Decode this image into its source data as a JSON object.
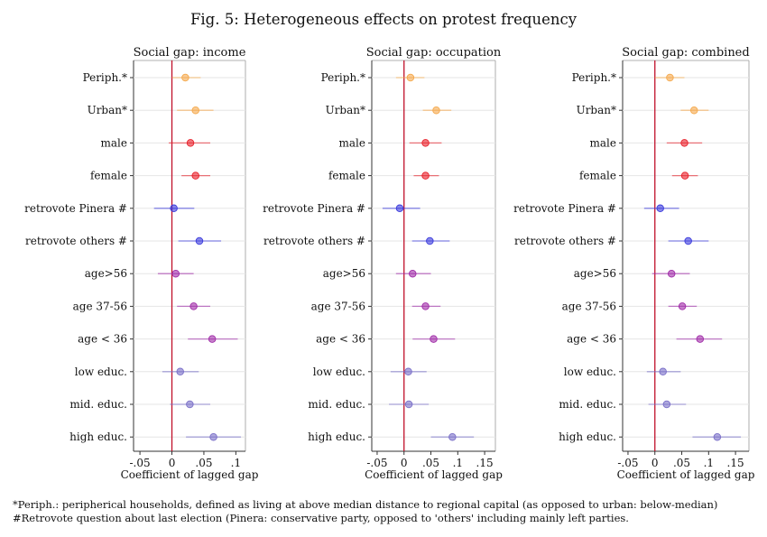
{
  "title": "Fig. 5: Heterogeneous effects on protest frequency",
  "notes": [
    "*Periph.: peripherical households, defined as living at above median distance to regional capital (as opposed to urban: below-median)",
    "#Retrovote question about last election (Pinera: conservative party, opposed to 'others' including mainly left parties."
  ],
  "colors": {
    "orange": "#f5a94c",
    "red": "#e8202a",
    "blue": "#3b3bdc",
    "purple": "#a02ca8",
    "lavender": "#7a6fc8",
    "zero_line": "#c0102a",
    "grid": "#e6e6e6",
    "axis": "#333333"
  },
  "chart_data": [
    {
      "type": "scatter",
      "title": "Social gap: income",
      "xlabel": "Coefficient of lagged gap",
      "xlim": [
        -0.06,
        0.115
      ],
      "xticks": [
        -0.05,
        0,
        0.05,
        0.1
      ],
      "xtick_labels": [
        "-.05",
        "0",
        ".05",
        ".1"
      ],
      "reference_line_x": 0,
      "grid": true,
      "categories": [
        "Periph.*",
        "Urban*",
        "male",
        "female",
        "retrovote Pinera #",
        "retrovote others #",
        "age>56",
        "age 37-56",
        "age < 36",
        "low educ.",
        "mid. educ.",
        "high educ."
      ],
      "colors": [
        "orange",
        "orange",
        "red",
        "red",
        "blue",
        "blue",
        "purple",
        "purple",
        "purple",
        "lavender",
        "lavender",
        "lavender"
      ],
      "estimates": [
        0.021,
        0.037,
        0.029,
        0.037,
        0.003,
        0.043,
        0.006,
        0.034,
        0.063,
        0.013,
        0.028,
        0.065
      ],
      "ci_low": [
        0.0,
        0.008,
        -0.005,
        0.015,
        -0.028,
        0.01,
        -0.022,
        0.008,
        0.025,
        -0.015,
        -0.003,
        0.022
      ],
      "ci_high": [
        0.045,
        0.065,
        0.06,
        0.06,
        0.035,
        0.077,
        0.034,
        0.06,
        0.103,
        0.042,
        0.06,
        0.108
      ]
    },
    {
      "type": "scatter",
      "title": "Social gap: occupation",
      "xlabel": "Coefficient of lagged gap",
      "xlim": [
        -0.06,
        0.17
      ],
      "xticks": [
        -0.05,
        0,
        0.05,
        0.1,
        0.15
      ],
      "xtick_labels": [
        "-.05",
        "0",
        ".05",
        ".1",
        ".15"
      ],
      "reference_line_x": 0,
      "grid": true,
      "categories": [
        "Periph.*",
        "Urban*",
        "male",
        "female",
        "retrovote Pinera #",
        "retrovote others #",
        "age>56",
        "age 37-56",
        "age < 36",
        "low educ.",
        "mid. educ.",
        "high educ."
      ],
      "colors": [
        "orange",
        "orange",
        "red",
        "red",
        "blue",
        "blue",
        "purple",
        "purple",
        "purple",
        "lavender",
        "lavender",
        "lavender"
      ],
      "estimates": [
        0.012,
        0.06,
        0.04,
        0.04,
        -0.008,
        0.048,
        0.016,
        0.04,
        0.055,
        0.008,
        0.009,
        0.09
      ],
      "ci_low": [
        -0.015,
        0.035,
        0.01,
        0.018,
        -0.04,
        0.015,
        -0.015,
        0.015,
        0.016,
        -0.025,
        -0.028,
        0.05
      ],
      "ci_high": [
        0.038,
        0.088,
        0.07,
        0.065,
        0.03,
        0.085,
        0.05,
        0.068,
        0.095,
        0.042,
        0.046,
        0.13
      ]
    },
    {
      "type": "scatter",
      "title": "Social gap: combined",
      "xlabel": "Coefficient of lagged gap",
      "xlim": [
        -0.06,
        0.175
      ],
      "xticks": [
        -0.05,
        0,
        0.05,
        0.1,
        0.15
      ],
      "xtick_labels": [
        "-.05",
        "0",
        ".05",
        ".1",
        ".15"
      ],
      "reference_line_x": 0,
      "grid": true,
      "categories": [
        "Periph.*",
        "Urban*",
        "male",
        "female",
        "retrovote Pinera #",
        "retrovote others #",
        "age>56",
        "age 37-56",
        "age < 36",
        "low educ.",
        "mid. educ.",
        "high educ."
      ],
      "colors": [
        "orange",
        "orange",
        "red",
        "red",
        "blue",
        "blue",
        "purple",
        "purple",
        "purple",
        "lavender",
        "lavender",
        "lavender"
      ],
      "estimates": [
        0.028,
        0.073,
        0.055,
        0.056,
        0.01,
        0.062,
        0.031,
        0.051,
        0.084,
        0.015,
        0.022,
        0.116
      ],
      "ci_low": [
        0.0,
        0.048,
        0.022,
        0.032,
        -0.02,
        0.025,
        -0.005,
        0.025,
        0.04,
        -0.015,
        -0.012,
        0.07
      ],
      "ci_high": [
        0.055,
        0.1,
        0.088,
        0.08,
        0.045,
        0.1,
        0.065,
        0.078,
        0.125,
        0.048,
        0.058,
        0.16
      ]
    }
  ]
}
